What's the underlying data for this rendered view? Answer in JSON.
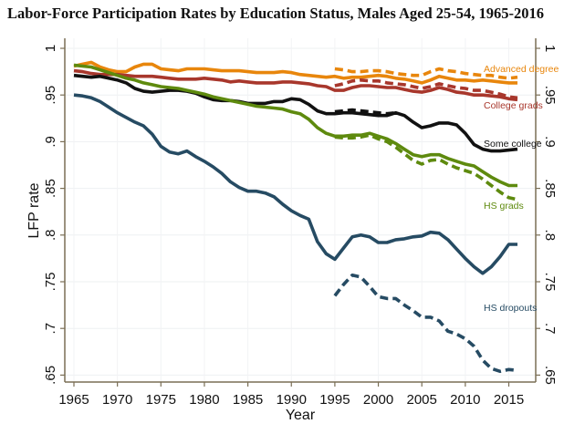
{
  "chart_data": {
    "type": "line",
    "title": "Labor-Force Participation Rates by Education Status, Males Aged 25-54, 1965-2016",
    "xlabel": "Year",
    "ylabel": "LFP rate",
    "xlim": [
      1964,
      2018.5
    ],
    "ylim": [
      0.64,
      1.0
    ],
    "x_ticks": [
      1965,
      1970,
      1975,
      1980,
      1985,
      1990,
      1995,
      2000,
      2005,
      2010,
      2015
    ],
    "x_tick_labels": [
      "1965",
      "1970",
      "1975",
      "1980",
      "1985",
      "1990",
      "1995",
      "2000",
      "2005",
      "2010",
      "2015"
    ],
    "y_ticks": [
      0.65,
      0.7,
      0.75,
      0.8,
      0.85,
      0.9,
      0.95,
      1.0
    ],
    "y_tick_labels": [
      ".65",
      ".7",
      ".75",
      ".8",
      ".85",
      ".9",
      ".95",
      "1"
    ],
    "right_axis": true,
    "grid": true,
    "legend": "direct labels at right end of lines",
    "series": [
      {
        "name": "Advanced degree",
        "style": "solid",
        "color": "#E8860C",
        "label": "Advanced degree",
        "x": [
          1965,
          1966,
          1967,
          1968,
          1969,
          1970,
          1971,
          1972,
          1973,
          1974,
          1975,
          1976,
          1977,
          1978,
          1979,
          1980,
          1981,
          1982,
          1983,
          1984,
          1985,
          1986,
          1987,
          1988,
          1989,
          1990,
          1991,
          1992,
          1993,
          1994,
          1995,
          1996,
          1997,
          1998,
          1999,
          2000,
          2001,
          2002,
          2003,
          2004,
          2005,
          2006,
          2007,
          2008,
          2009,
          2010,
          2011,
          2012,
          2013,
          2014,
          2015,
          2016
        ],
        "y": [
          0.981,
          0.983,
          0.985,
          0.98,
          0.977,
          0.975,
          0.975,
          0.98,
          0.983,
          0.983,
          0.978,
          0.977,
          0.976,
          0.978,
          0.978,
          0.978,
          0.977,
          0.976,
          0.976,
          0.976,
          0.975,
          0.974,
          0.974,
          0.974,
          0.975,
          0.974,
          0.972,
          0.971,
          0.97,
          0.969,
          0.97,
          0.968,
          0.969,
          0.969,
          0.97,
          0.971,
          0.97,
          0.968,
          0.967,
          0.965,
          0.963,
          0.966,
          0.97,
          0.968,
          0.966,
          0.966,
          0.965,
          0.966,
          0.965,
          0.964,
          0.963,
          0.963
        ]
      },
      {
        "name": "Advanced degree (alt.)",
        "style": "dashed",
        "color": "#E8860C",
        "x": [
          1995,
          1996,
          1997,
          1998,
          1999,
          2000,
          2001,
          2002,
          2003,
          2004,
          2005,
          2006,
          2007,
          2008,
          2009,
          2010,
          2011,
          2012,
          2013,
          2014,
          2015,
          2016
        ],
        "y": [
          0.978,
          0.977,
          0.975,
          0.975,
          0.976,
          0.976,
          0.975,
          0.973,
          0.972,
          0.971,
          0.971,
          0.975,
          0.978,
          0.976,
          0.975,
          0.973,
          0.972,
          0.971,
          0.971,
          0.969,
          0.968,
          0.969
        ]
      },
      {
        "name": "College grads",
        "style": "solid",
        "color": "#A8372C",
        "label": "College grads",
        "x": [
          1965,
          1966,
          1967,
          1968,
          1969,
          1970,
          1971,
          1972,
          1973,
          1974,
          1975,
          1976,
          1977,
          1978,
          1979,
          1980,
          1981,
          1982,
          1983,
          1984,
          1985,
          1986,
          1987,
          1988,
          1989,
          1990,
          1991,
          1992,
          1993,
          1994,
          1995,
          1996,
          1997,
          1998,
          1999,
          2000,
          2001,
          2002,
          2003,
          2004,
          2005,
          2006,
          2007,
          2008,
          2009,
          2010,
          2011,
          2012,
          2013,
          2014,
          2015,
          2016
        ],
        "y": [
          0.976,
          0.975,
          0.973,
          0.972,
          0.972,
          0.972,
          0.971,
          0.97,
          0.97,
          0.97,
          0.969,
          0.968,
          0.967,
          0.967,
          0.967,
          0.968,
          0.967,
          0.966,
          0.964,
          0.965,
          0.964,
          0.963,
          0.963,
          0.963,
          0.964,
          0.964,
          0.963,
          0.962,
          0.96,
          0.959,
          0.955,
          0.955,
          0.958,
          0.96,
          0.96,
          0.959,
          0.958,
          0.958,
          0.956,
          0.954,
          0.953,
          0.955,
          0.958,
          0.956,
          0.953,
          0.952,
          0.95,
          0.95,
          0.949,
          0.948,
          0.946,
          0.945
        ]
      },
      {
        "name": "College grads (alt.)",
        "style": "dashed",
        "color": "#A8372C",
        "x": [
          1995,
          1996,
          1997,
          1998,
          1999,
          2000,
          2001,
          2002,
          2003,
          2004,
          2005,
          2006,
          2007,
          2008,
          2009,
          2010,
          2011,
          2012,
          2013,
          2014,
          2015,
          2016
        ],
        "y": [
          0.96,
          0.962,
          0.965,
          0.966,
          0.965,
          0.965,
          0.963,
          0.962,
          0.961,
          0.959,
          0.957,
          0.959,
          0.962,
          0.96,
          0.958,
          0.957,
          0.955,
          0.955,
          0.953,
          0.951,
          0.948,
          0.947
        ]
      },
      {
        "name": "Some college",
        "style": "solid",
        "color": "#111111",
        "label": "Some college",
        "x": [
          1965,
          1966,
          1967,
          1968,
          1969,
          1970,
          1971,
          1972,
          1973,
          1974,
          1975,
          1976,
          1977,
          1978,
          1979,
          1980,
          1981,
          1982,
          1983,
          1984,
          1985,
          1986,
          1987,
          1988,
          1989,
          1990,
          1991,
          1992,
          1993,
          1994,
          1995,
          1996,
          1997,
          1998,
          1999,
          2000,
          2001,
          2002,
          2003,
          2004,
          2005,
          2006,
          2007,
          2008,
          2009,
          2010,
          2011,
          2012,
          2013,
          2014,
          2015,
          2016
        ],
        "y": [
          0.971,
          0.97,
          0.969,
          0.97,
          0.968,
          0.966,
          0.963,
          0.957,
          0.954,
          0.953,
          0.954,
          0.955,
          0.955,
          0.954,
          0.952,
          0.948,
          0.945,
          0.944,
          0.944,
          0.943,
          0.941,
          0.941,
          0.941,
          0.943,
          0.943,
          0.946,
          0.945,
          0.94,
          0.933,
          0.93,
          0.93,
          0.931,
          0.931,
          0.93,
          0.929,
          0.928,
          0.928,
          0.931,
          0.928,
          0.921,
          0.915,
          0.917,
          0.92,
          0.92,
          0.918,
          0.909,
          0.897,
          0.892,
          0.89,
          0.89,
          0.891,
          0.892
        ]
      },
      {
        "name": "Some college (alt.)",
        "style": "dashed",
        "color": "#111111",
        "x": [
          1995,
          1996,
          1997,
          1998,
          1999,
          2000,
          2001,
          2002
        ],
        "y": [
          0.932,
          0.933,
          0.934,
          0.933,
          0.932,
          0.931,
          0.93,
          0.931
        ]
      },
      {
        "name": "HS grads",
        "style": "solid",
        "color": "#5E8A0E",
        "label": "HS grads",
        "x": [
          1965,
          1966,
          1967,
          1968,
          1969,
          1970,
          1971,
          1972,
          1973,
          1974,
          1975,
          1976,
          1977,
          1978,
          1979,
          1980,
          1981,
          1982,
          1983,
          1984,
          1985,
          1986,
          1987,
          1988,
          1989,
          1990,
          1991,
          1992,
          1993,
          1994,
          1995,
          1996,
          1997,
          1998,
          1999,
          2000,
          2001,
          2002,
          2003,
          2004,
          2005,
          2006,
          2007,
          2008,
          2009,
          2010,
          2011,
          2012,
          2013,
          2014,
          2015,
          2016
        ],
        "y": [
          0.982,
          0.981,
          0.98,
          0.977,
          0.974,
          0.971,
          0.968,
          0.966,
          0.963,
          0.961,
          0.959,
          0.958,
          0.957,
          0.955,
          0.953,
          0.951,
          0.948,
          0.946,
          0.944,
          0.942,
          0.94,
          0.938,
          0.937,
          0.936,
          0.935,
          0.932,
          0.93,
          0.924,
          0.915,
          0.909,
          0.906,
          0.906,
          0.907,
          0.907,
          0.909,
          0.906,
          0.903,
          0.898,
          0.892,
          0.886,
          0.884,
          0.886,
          0.886,
          0.882,
          0.879,
          0.876,
          0.874,
          0.868,
          0.862,
          0.857,
          0.853,
          0.853
        ]
      },
      {
        "name": "HS grads (alt.)",
        "style": "dashed",
        "color": "#5E8A0E",
        "x": [
          1995,
          1996,
          1997,
          1998,
          1999,
          2000,
          2001,
          2002,
          2003,
          2004,
          2005,
          2006,
          2007,
          2008,
          2009,
          2010,
          2011,
          2012,
          2013,
          2014,
          2015,
          2016
        ],
        "y": [
          0.905,
          0.904,
          0.904,
          0.905,
          0.907,
          0.903,
          0.9,
          0.894,
          0.887,
          0.88,
          0.876,
          0.88,
          0.881,
          0.876,
          0.872,
          0.869,
          0.866,
          0.86,
          0.853,
          0.846,
          0.84,
          0.838
        ]
      },
      {
        "name": "HS dropouts",
        "style": "solid",
        "color": "#264B63",
        "label": "HS dropouts",
        "x": [
          1965,
          1966,
          1967,
          1968,
          1969,
          1970,
          1971,
          1972,
          1973,
          1974,
          1975,
          1976,
          1977,
          1978,
          1979,
          1980,
          1981,
          1982,
          1983,
          1984,
          1985,
          1986,
          1987,
          1988,
          1989,
          1990,
          1991,
          1992,
          1993,
          1994,
          1995,
          1996,
          1997,
          1998,
          1999,
          2000,
          2001,
          2002,
          2003,
          2004,
          2005,
          2006,
          2007,
          2008,
          2009,
          2010,
          2011,
          2012,
          2013,
          2014,
          2015,
          2016
        ],
        "y": [
          0.95,
          0.949,
          0.947,
          0.943,
          0.937,
          0.931,
          0.926,
          0.921,
          0.917,
          0.908,
          0.895,
          0.889,
          0.887,
          0.89,
          0.884,
          0.879,
          0.873,
          0.866,
          0.857,
          0.851,
          0.847,
          0.847,
          0.845,
          0.841,
          0.833,
          0.826,
          0.821,
          0.817,
          0.793,
          0.78,
          0.774,
          0.786,
          0.798,
          0.8,
          0.798,
          0.792,
          0.792,
          0.795,
          0.796,
          0.798,
          0.799,
          0.803,
          0.802,
          0.795,
          0.785,
          0.775,
          0.766,
          0.759,
          0.766,
          0.777,
          0.79,
          0.79
        ]
      },
      {
        "name": "HS dropouts (alt.)",
        "style": "dashed",
        "color": "#264B63",
        "x": [
          1995,
          1996,
          1997,
          1998,
          1999,
          2000,
          2001,
          2002,
          2003,
          2004,
          2005,
          2006,
          2007,
          2008,
          2009,
          2010,
          2011,
          2012,
          2013,
          2014,
          2015,
          2016
        ],
        "y": [
          0.735,
          0.747,
          0.757,
          0.755,
          0.745,
          0.734,
          0.732,
          0.732,
          0.725,
          0.719,
          0.712,
          0.712,
          0.708,
          0.697,
          0.694,
          0.689,
          0.681,
          0.666,
          0.657,
          0.654,
          0.656,
          0.655
        ]
      }
    ]
  }
}
